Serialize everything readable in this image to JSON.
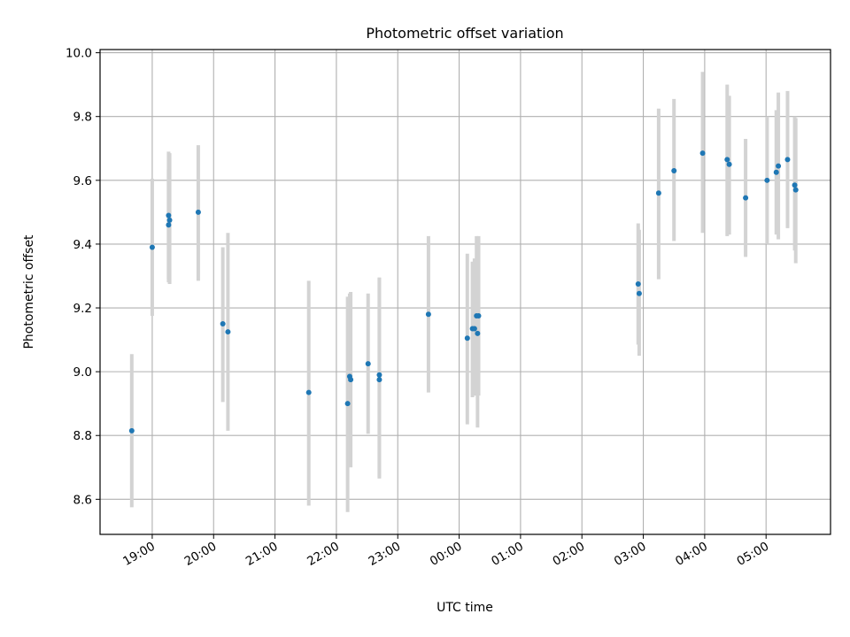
{
  "chart_data": {
    "type": "scatter",
    "title": "Photometric offset variation",
    "xlabel": "UTC time",
    "ylabel": "Photometric offset",
    "x_ticks": [
      "19:00",
      "20:00",
      "21:00",
      "22:00",
      "23:00",
      "00:00",
      "01:00",
      "02:00",
      "03:00",
      "04:00",
      "05:00"
    ],
    "y_ticks": [
      "8.6",
      "8.8",
      "9.0",
      "9.2",
      "9.4",
      "9.6",
      "9.8",
      "10.0"
    ],
    "xlim": [
      "18:09",
      "06:03"
    ],
    "ylim": [
      8.49,
      10.01
    ],
    "grid": true,
    "colors": {
      "points": "#1f77b4",
      "error_bars": "#d3d3d3",
      "grid": "#b0b0b0"
    },
    "series": [
      {
        "points": [
          {
            "t": "18:40",
            "y": 8.815,
            "lo": 8.575,
            "hi": 9.055
          },
          {
            "t": "19:00",
            "y": 9.39,
            "lo": 9.175,
            "hi": 9.605
          },
          {
            "t": "19:16",
            "y": 9.46,
            "lo": 9.28,
            "hi": 9.635
          },
          {
            "t": "19:16",
            "y": 9.49,
            "lo": 9.29,
            "hi": 9.69
          },
          {
            "t": "19:17",
            "y": 9.475,
            "lo": 9.275,
            "hi": 9.685
          },
          {
            "t": "19:45",
            "y": 9.5,
            "lo": 9.285,
            "hi": 9.71
          },
          {
            "t": "20:09",
            "y": 9.15,
            "lo": 8.905,
            "hi": 9.39
          },
          {
            "t": "20:14",
            "y": 9.125,
            "lo": 8.815,
            "hi": 9.435
          },
          {
            "t": "21:33",
            "y": 8.935,
            "lo": 8.58,
            "hi": 9.285
          },
          {
            "t": "22:11",
            "y": 8.9,
            "lo": 8.56,
            "hi": 9.235
          },
          {
            "t": "22:13",
            "y": 8.985,
            "lo": 8.74,
            "hi": 9.245
          },
          {
            "t": "22:14",
            "y": 8.975,
            "lo": 8.7,
            "hi": 9.25
          },
          {
            "t": "22:31",
            "y": 9.025,
            "lo": 8.805,
            "hi": 9.245
          },
          {
            "t": "22:42",
            "y": 8.99,
            "lo": 8.67,
            "hi": 9.295
          },
          {
            "t": "22:42",
            "y": 8.975,
            "lo": 8.665,
            "hi": 9.295
          },
          {
            "t": "23:30",
            "y": 9.18,
            "lo": 8.935,
            "hi": 9.425
          },
          {
            "t": "00:08",
            "y": 9.105,
            "lo": 8.835,
            "hi": 9.37
          },
          {
            "t": "00:13",
            "y": 9.135,
            "lo": 8.92,
            "hi": 9.345
          },
          {
            "t": "00:15",
            "y": 9.135,
            "lo": 8.925,
            "hi": 9.355
          },
          {
            "t": "00:17",
            "y": 9.175,
            "lo": 8.925,
            "hi": 9.425
          },
          {
            "t": "00:18",
            "y": 9.12,
            "lo": 8.825,
            "hi": 9.42
          },
          {
            "t": "00:19",
            "y": 9.175,
            "lo": 8.925,
            "hi": 9.425
          },
          {
            "t": "02:55",
            "y": 9.275,
            "lo": 9.085,
            "hi": 9.465
          },
          {
            "t": "02:56",
            "y": 9.245,
            "lo": 9.05,
            "hi": 9.445
          },
          {
            "t": "03:15",
            "y": 9.56,
            "lo": 9.29,
            "hi": 9.825
          },
          {
            "t": "03:30",
            "y": 9.63,
            "lo": 9.41,
            "hi": 9.855
          },
          {
            "t": "03:58",
            "y": 9.685,
            "lo": 9.435,
            "hi": 9.94
          },
          {
            "t": "04:22",
            "y": 9.665,
            "lo": 9.425,
            "hi": 9.9
          },
          {
            "t": "04:24",
            "y": 9.65,
            "lo": 9.43,
            "hi": 9.865
          },
          {
            "t": "04:40",
            "y": 9.545,
            "lo": 9.36,
            "hi": 9.73
          },
          {
            "t": "05:01",
            "y": 9.6,
            "lo": 9.4,
            "hi": 9.8
          },
          {
            "t": "05:10",
            "y": 9.625,
            "lo": 9.43,
            "hi": 9.82
          },
          {
            "t": "05:12",
            "y": 9.645,
            "lo": 9.415,
            "hi": 9.875
          },
          {
            "t": "05:21",
            "y": 9.665,
            "lo": 9.45,
            "hi": 9.88
          },
          {
            "t": "05:28",
            "y": 9.585,
            "lo": 9.38,
            "hi": 9.8
          },
          {
            "t": "05:29",
            "y": 9.57,
            "lo": 9.34,
            "hi": 9.795
          }
        ]
      }
    ]
  }
}
